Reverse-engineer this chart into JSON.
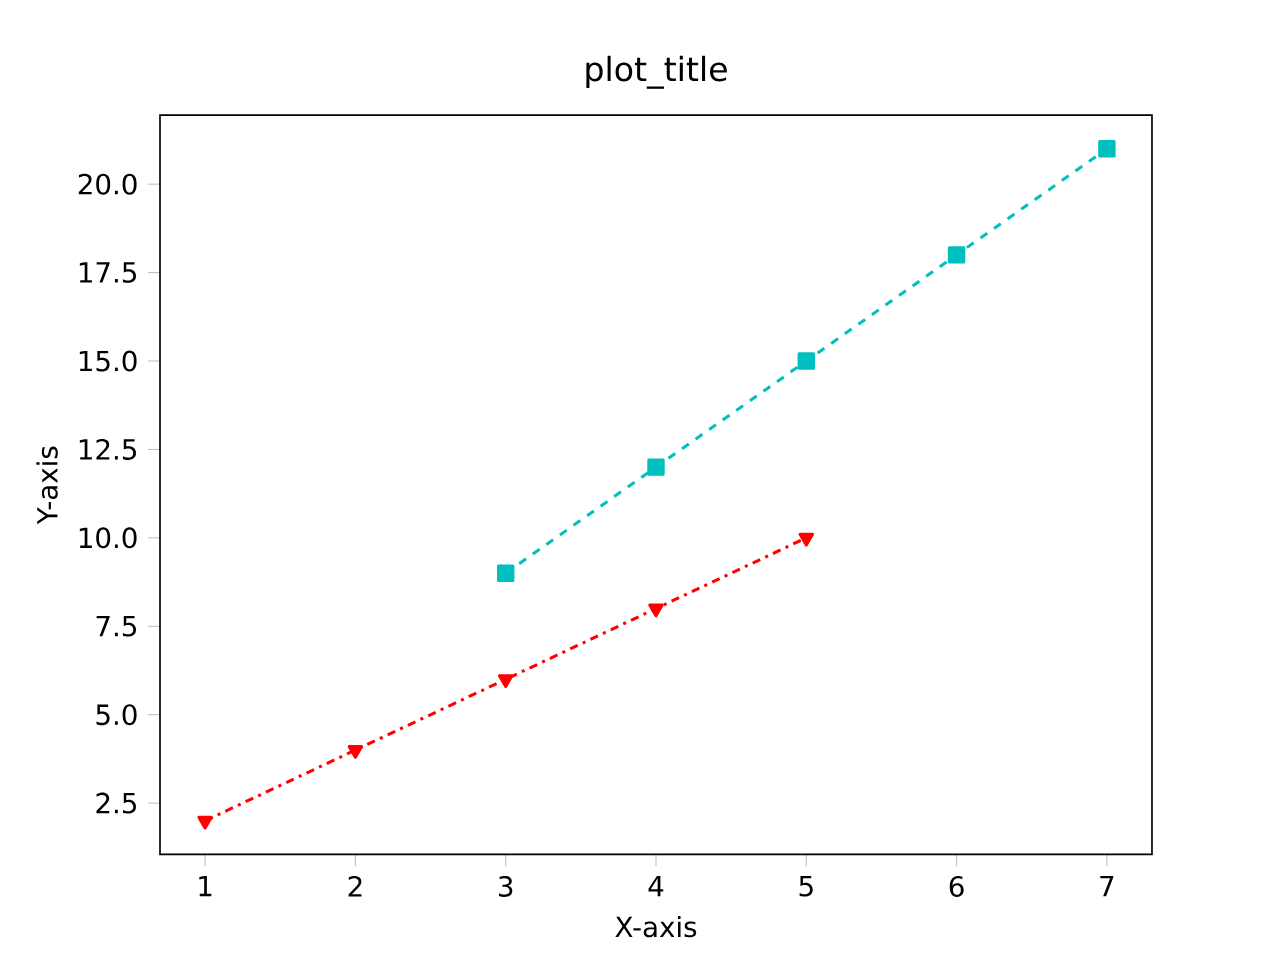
{
  "chart_data": {
    "type": "line",
    "title": "plot_title",
    "xlabel": "X-axis",
    "ylabel": "Y-axis",
    "series": [
      {
        "color": "#ff0000",
        "x": [
          1,
          2,
          3,
          4,
          5
        ],
        "values": [
          2,
          4,
          6,
          8,
          10
        ],
        "marker": "triangle_down",
        "line_style": "dashdot"
      },
      {
        "color": "#00bfbf",
        "x": [
          3,
          4,
          5,
          6,
          7
        ],
        "values": [
          9,
          12,
          15,
          18,
          21
        ],
        "marker": "square",
        "line_style": "dashed"
      }
    ],
    "xlim": [
      0.7,
      7.3
    ],
    "ylim": [
      1.05,
      21.95
    ],
    "xticks": [
      1,
      2,
      3,
      4,
      5,
      6,
      7
    ],
    "yticks": [
      {
        "value": 2.5,
        "label": "2.5"
      },
      {
        "value": 5,
        "label": "5.0"
      },
      {
        "value": 7.5,
        "label": "7.5"
      },
      {
        "value": 10,
        "label": "10.0"
      },
      {
        "value": 12.5,
        "label": "12.5"
      },
      {
        "value": 15,
        "label": "15.0"
      },
      {
        "value": 17.5,
        "label": "17.5"
      },
      {
        "value": 20,
        "label": "20.0"
      }
    ]
  }
}
